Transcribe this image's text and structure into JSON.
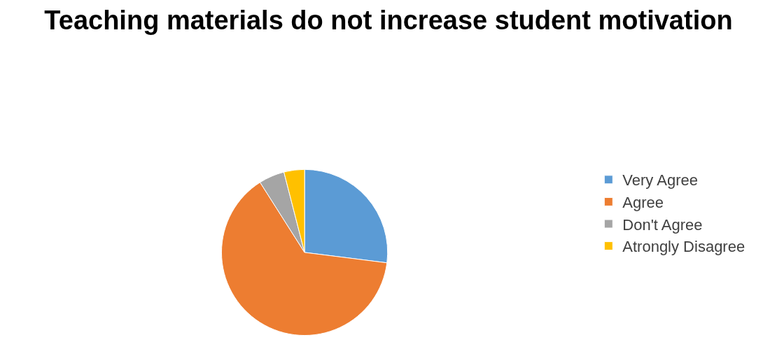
{
  "chart_data": {
    "type": "pie",
    "title": "Teaching materials do not increase student motivation",
    "categories": [
      "Very Agree",
      "Agree",
      "Don't Agree",
      "Atrongly Disagree"
    ],
    "values": [
      27,
      64,
      5,
      4
    ],
    "colors": [
      "#5b9bd5",
      "#ed7d31",
      "#a5a5a5",
      "#ffc000"
    ],
    "legend": "right"
  }
}
